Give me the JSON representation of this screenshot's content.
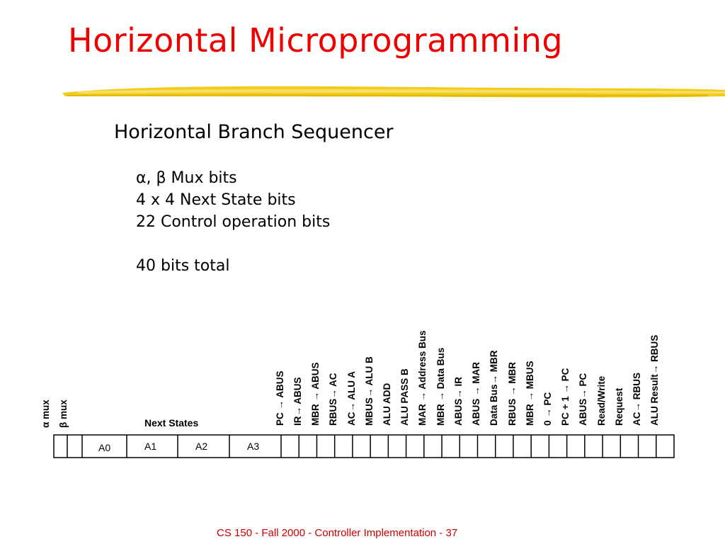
{
  "slide": {
    "title": "Horizontal Microprogramming",
    "subtitle": "Horizontal Branch Sequencer",
    "bullets": [
      "α, β Mux bits",
      "4 x 4 Next State bits",
      "22 Control operation bits",
      "",
      "40 bits total"
    ],
    "footer": "CS 150 - Fall 2000 - Controller Implementation - 37"
  },
  "colors": {
    "title": "#ee0000",
    "footer": "#cc0000",
    "underline": "#f0c800"
  },
  "register": {
    "mux_labels": [
      "α mux",
      "β mux"
    ],
    "next_states_label": "Next States",
    "next_state_fields": [
      "A0",
      "A1",
      "A2",
      "A3"
    ],
    "control_bits": [
      "PC → ABUS",
      "IR→ ABUS",
      "MBR → ABUS",
      "RBUS→ AC",
      "AC→ ALU A",
      "MBUS→ ALU B",
      "ALU ADD",
      "ALU PASS B",
      "MAR → Address Bus",
      "MBR → Data Bus",
      "ABUS→ IR",
      "ABUS → MAR",
      "Data Bus→ MBR",
      "RBUS → MBR",
      "MBR → MBUS",
      "0 → PC",
      "PC + 1 → PC",
      "ABUS→ PC",
      "Read/Write",
      "Request",
      "AC→ RBUS",
      "ALU Result→ RBUS"
    ]
  }
}
